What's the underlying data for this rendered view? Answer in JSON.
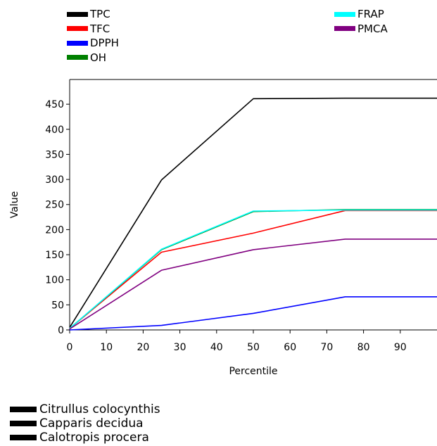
{
  "chart_data": {
    "type": "line",
    "title": "",
    "xlabel": "Percentile",
    "ylabel": "Value",
    "xlim": [
      0,
      100
    ],
    "ylim": [
      0,
      460
    ],
    "x_ticks": [
      0,
      10,
      20,
      30,
      40,
      50,
      60,
      70,
      80,
      90
    ],
    "y_ticks": [
      0,
      50,
      100,
      150,
      200,
      250,
      300,
      350,
      400,
      450
    ],
    "grid": false,
    "x": [
      0,
      25,
      50,
      75,
      100
    ],
    "series": [
      {
        "name": "TPC",
        "color": "#000000",
        "values": [
          5,
          299,
          461,
          462,
          462
        ]
      },
      {
        "name": "TFC",
        "color": "#ff0000",
        "values": [
          3,
          155,
          193,
          238,
          238
        ]
      },
      {
        "name": "DPPH",
        "color": "#0000ff",
        "values": [
          0,
          9,
          33,
          66,
          66
        ]
      },
      {
        "name": "OH",
        "color": "#008000",
        "values": [
          3,
          160,
          236,
          240,
          240
        ]
      },
      {
        "name": "FRAP",
        "color": "#00ffff",
        "values": [
          3,
          161,
          237,
          239,
          239
        ]
      },
      {
        "name": "PMCA",
        "color": "#800080",
        "values": [
          2,
          119,
          160,
          181,
          181
        ]
      }
    ],
    "legend_placement": "top",
    "bottom_legend": [
      {
        "name": "Citrullus colocynthis",
        "color": "#000000"
      },
      {
        "name": "Capparis decidua",
        "color": "#000000"
      },
      {
        "name": "Calotropis procera",
        "color": "#000000"
      }
    ]
  }
}
